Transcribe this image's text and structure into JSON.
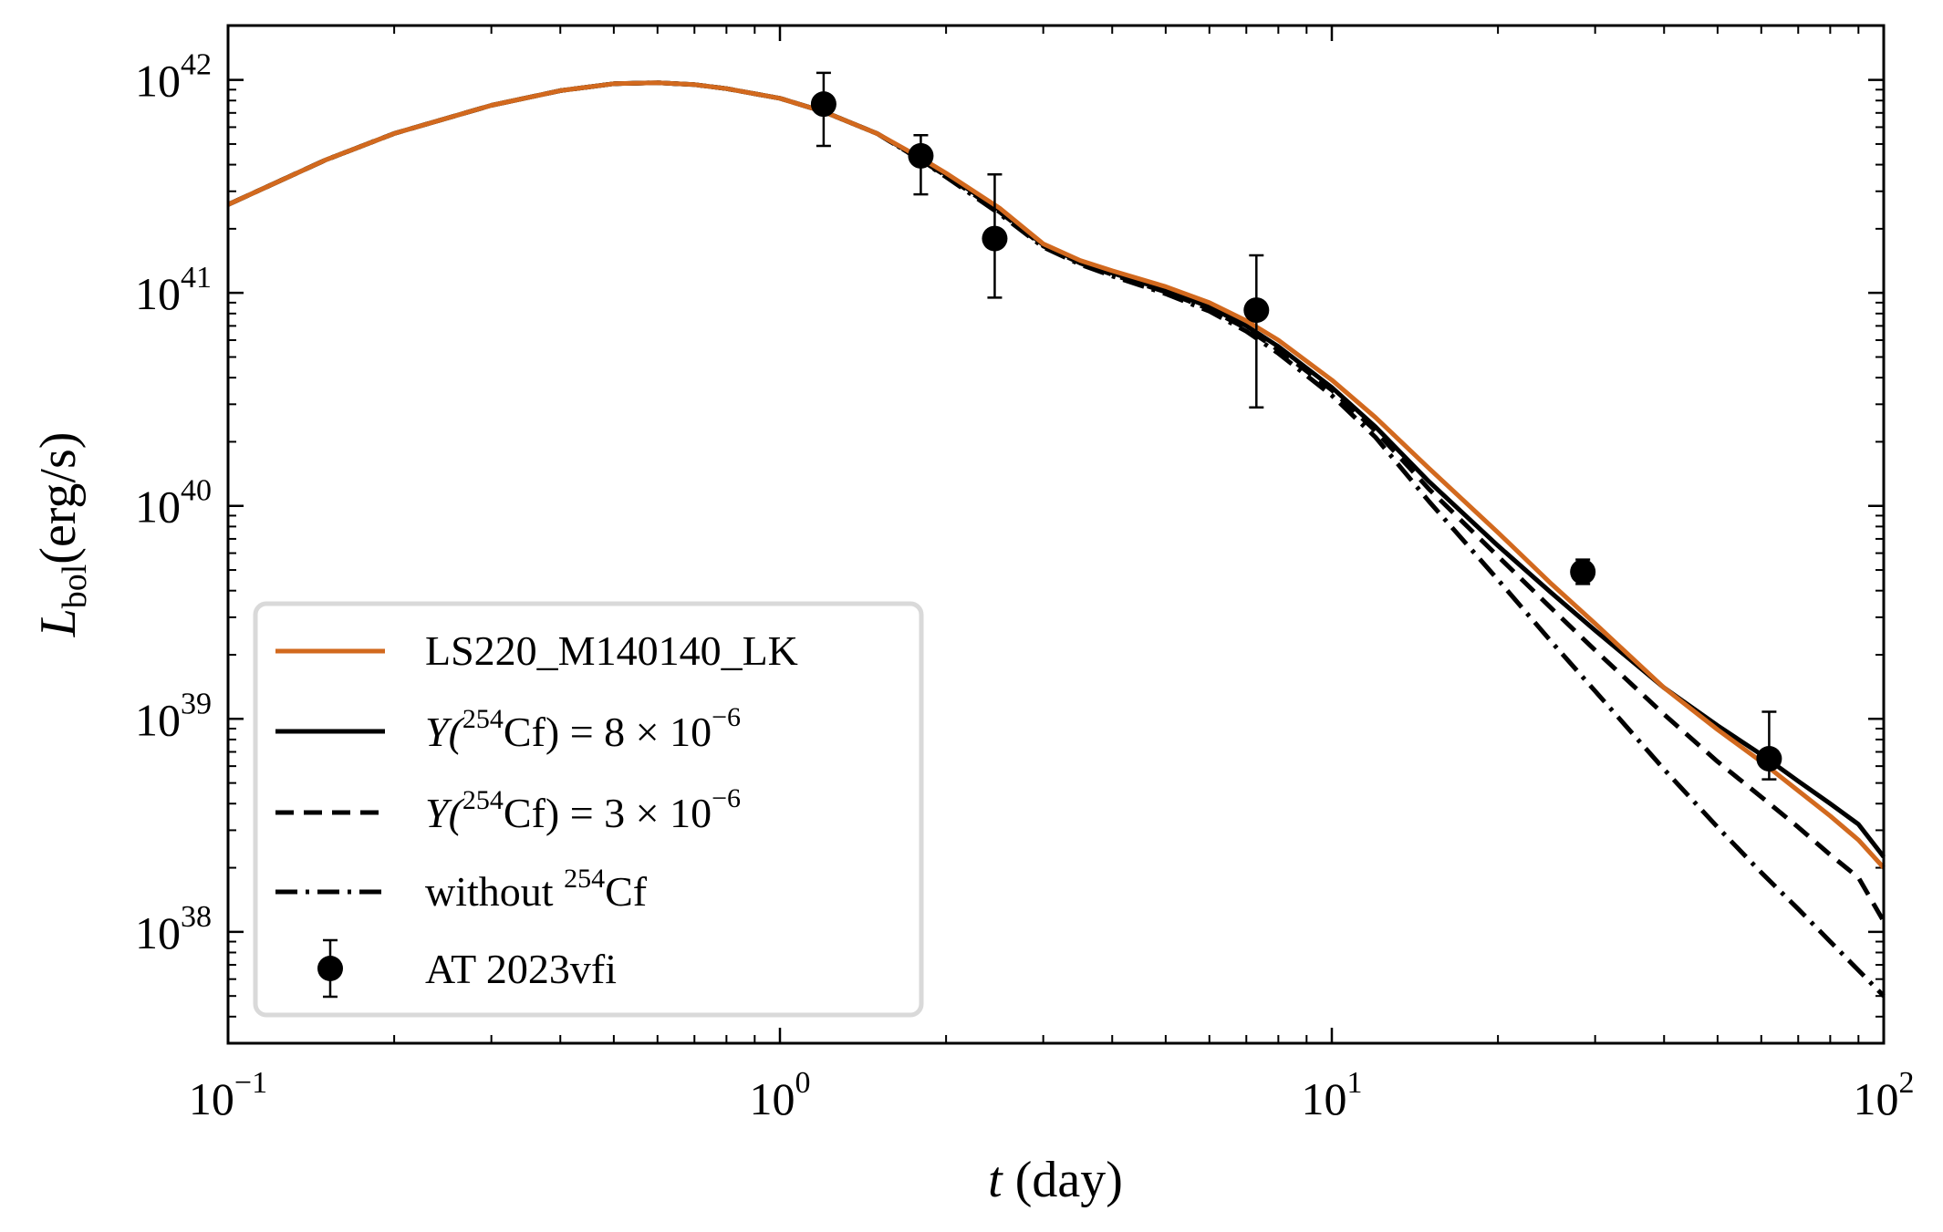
{
  "chart_data": {
    "type": "line",
    "xscale": "log",
    "yscale": "log",
    "xlim": [
      0.1,
      100
    ],
    "ylim": [
      3e+37,
      1.8e+42
    ],
    "xlabel": {
      "var": "t",
      "unit": "(day)"
    },
    "ylabel": {
      "var": "L",
      "sub": "bol",
      "unit": "(erg/s)"
    },
    "x_ticks": [
      {
        "base": "10",
        "exp": "−1"
      },
      {
        "base": "10",
        "exp": "0"
      },
      {
        "base": "10",
        "exp": "1"
      },
      {
        "base": "10",
        "exp": "2"
      }
    ],
    "y_ticks": [
      {
        "base": "10",
        "exp": "38"
      },
      {
        "base": "10",
        "exp": "39"
      },
      {
        "base": "10",
        "exp": "40"
      },
      {
        "base": "10",
        "exp": "41"
      },
      {
        "base": "10",
        "exp": "42"
      }
    ],
    "legend_position": "lower-left",
    "series": [
      {
        "name": "LS220_M140140_LK",
        "color": "#d2691e",
        "style": "solid",
        "x": [
          0.1,
          0.15,
          0.2,
          0.3,
          0.4,
          0.5,
          0.6,
          0.7,
          0.8,
          1.0,
          1.2,
          1.5,
          1.8,
          2.0,
          2.5,
          3.0,
          3.5,
          4.0,
          5.0,
          6.0,
          7.0,
          8.0,
          10,
          12,
          15,
          20,
          25,
          30,
          40,
          50,
          60,
          70,
          80,
          90,
          100
        ],
        "y": [
          2.6e+41,
          4.2e+41,
          5.6e+41,
          7.6e+41,
          8.9e+41,
          9.6e+41,
          9.7e+41,
          9.5e+41,
          9.1e+41,
          8.2e+41,
          7.1e+41,
          5.6e+41,
          4.3e+41,
          3.65e+41,
          2.5e+41,
          1.7e+41,
          1.42e+41,
          1.27e+41,
          1.07e+41,
          9e+40,
          7.4e+40,
          6e+40,
          3.9e+40,
          2.6e+40,
          1.5e+40,
          7.5e+39,
          4.3e+39,
          2.8e+39,
          1.4e+39,
          8.9e+38,
          6.3e+38,
          4.6e+38,
          3.5e+38,
          2.7e+38,
          2e+38
        ]
      },
      {
        "name": "Y(254Cf) = 8×10⁻⁶",
        "color": "#000000",
        "style": "solid",
        "x": [
          0.1,
          0.15,
          0.2,
          0.3,
          0.4,
          0.5,
          0.6,
          0.7,
          0.8,
          1.0,
          1.2,
          1.5,
          1.8,
          2.0,
          2.5,
          3.0,
          3.5,
          4.0,
          5.0,
          6.0,
          7.0,
          8.0,
          10,
          12,
          15,
          20,
          25,
          30,
          40,
          50,
          60,
          70,
          80,
          90,
          100
        ],
        "y": [
          2.6e+41,
          4.2e+41,
          5.6e+41,
          7.6e+41,
          8.9e+41,
          9.6e+41,
          9.7e+41,
          9.5e+41,
          9.1e+41,
          8.2e+41,
          7.1e+41,
          5.6e+41,
          4.25e+41,
          3.6e+41,
          2.45e+41,
          1.68e+41,
          1.4e+41,
          1.24e+41,
          1.03e+41,
          8.6e+40,
          7e+40,
          5.6e+40,
          3.6e+40,
          2.35e+40,
          1.3e+40,
          6.5e+39,
          3.9e+39,
          2.6e+39,
          1.4e+39,
          9.3e+38,
          6.8e+38,
          5.1e+38,
          4e+38,
          3.2e+38,
          2.25e+38
        ]
      },
      {
        "name": "Y(254Cf) = 3×10⁻⁶",
        "color": "#000000",
        "style": "dashed",
        "x": [
          0.1,
          0.15,
          0.2,
          0.3,
          0.4,
          0.5,
          0.6,
          0.7,
          0.8,
          1.0,
          1.2,
          1.5,
          1.8,
          2.0,
          2.5,
          3.0,
          3.5,
          4.0,
          5.0,
          6.0,
          7.0,
          8.0,
          10,
          12,
          15,
          20,
          25,
          30,
          40,
          50,
          60,
          70,
          80,
          90,
          100
        ],
        "y": [
          2.6e+41,
          4.2e+41,
          5.6e+41,
          7.6e+41,
          8.9e+41,
          9.6e+41,
          9.7e+41,
          9.5e+41,
          9.1e+41,
          8.2e+41,
          7.1e+41,
          5.6e+41,
          4.2e+41,
          3.55e+41,
          2.4e+41,
          1.66e+41,
          1.38e+41,
          1.22e+41,
          1.01e+41,
          8.4e+40,
          6.8e+40,
          5.4e+40,
          3.5e+40,
          2.25e+40,
          1.2e+40,
          5.8e+39,
          3.3e+39,
          2.1e+39,
          1.05e+39,
          6.3e+38,
          4.3e+38,
          3.1e+38,
          2.3e+38,
          1.8e+38,
          1.12e+38
        ]
      },
      {
        "name": "without 254Cf",
        "color": "#000000",
        "style": "dashdot",
        "x": [
          0.1,
          0.15,
          0.2,
          0.3,
          0.4,
          0.5,
          0.6,
          0.7,
          0.8,
          1.0,
          1.2,
          1.5,
          1.8,
          2.0,
          2.5,
          3.0,
          3.5,
          4.0,
          5.0,
          6.0,
          7.0,
          8.0,
          10,
          12,
          15,
          20,
          25,
          30,
          40,
          50,
          60,
          70,
          80,
          90,
          100
        ],
        "y": [
          2.6e+41,
          4.2e+41,
          5.6e+41,
          7.6e+41,
          8.9e+41,
          9.6e+41,
          9.7e+41,
          9.5e+41,
          9.1e+41,
          8.2e+41,
          7.1e+41,
          5.6e+41,
          4.2e+41,
          3.5e+41,
          2.35e+41,
          1.64e+41,
          1.36e+41,
          1.2e+41,
          9.9e+40,
          8.2e+40,
          6.6e+40,
          5.2e+40,
          3.3e+40,
          2.1e+40,
          1.05e+40,
          4.5e+39,
          2.3e+39,
          1.35e+39,
          5.8e+38,
          3.1e+38,
          1.9e+38,
          1.28e+38,
          9e+37,
          6.6e+37,
          5e+37
        ]
      }
    ],
    "observations": {
      "name": "AT 2023vfi",
      "color": "#000000",
      "points": [
        {
          "x": 1.2,
          "y": 7.7e+41,
          "y_low": 4.9e+41,
          "y_high": 1.08e+42
        },
        {
          "x": 1.8,
          "y": 4.4e+41,
          "y_low": 2.9e+41,
          "y_high": 5.5e+41
        },
        {
          "x": 2.45,
          "y": 1.8e+41,
          "y_low": 9.5e+40,
          "y_high": 3.6e+41
        },
        {
          "x": 7.3,
          "y": 8.3e+40,
          "y_low": 2.9e+40,
          "y_high": 1.5e+41
        },
        {
          "x": 28.5,
          "y": 4.9e+39,
          "y_low": 4.3e+39,
          "y_high": 5.6e+39
        },
        {
          "x": 62,
          "y": 6.5e+38,
          "y_low": 5.2e+38,
          "y_high": 1.08e+39
        }
      ]
    },
    "legend": {
      "entries": [
        {
          "key": "model",
          "text": "LS220_M140140_LK"
        },
        {
          "key": "cf8",
          "pre": "Y(",
          "sup": "254",
          "post": "Cf) = 8 × 10",
          "sup2": "−6"
        },
        {
          "key": "cf3",
          "pre": "Y(",
          "sup": "254",
          "post": "Cf) = 3 × 10",
          "sup2": "−6"
        },
        {
          "key": "nocf",
          "pre": "without ",
          "sup": "254",
          "post": "Cf"
        },
        {
          "key": "obs",
          "text": "AT 2023vfi"
        }
      ]
    }
  }
}
